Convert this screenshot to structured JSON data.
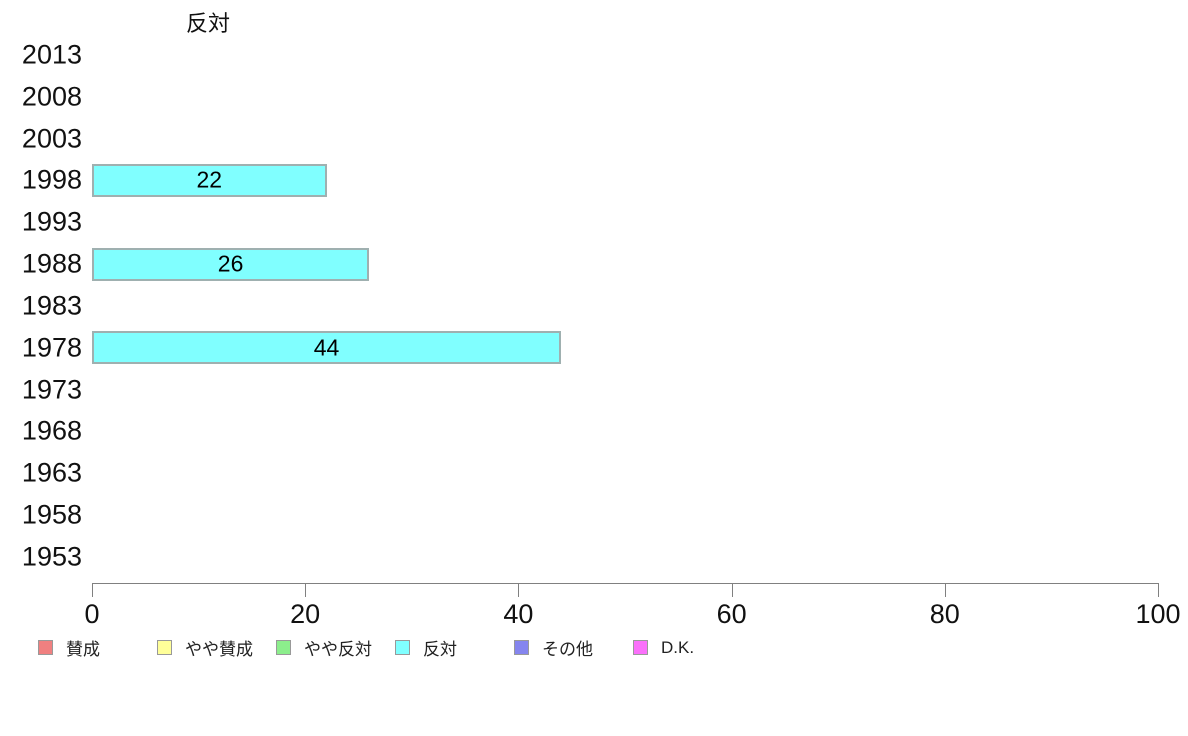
{
  "title": "反対",
  "chart_data": {
    "type": "bar",
    "orientation": "horizontal",
    "title": "反対",
    "categories": [
      "2013",
      "2008",
      "2003",
      "1998",
      "1993",
      "1988",
      "1983",
      "1978",
      "1973",
      "1968",
      "1963",
      "1958",
      "1953"
    ],
    "series": [
      {
        "name": "反対",
        "values": [
          null,
          null,
          null,
          22,
          null,
          26,
          null,
          44,
          null,
          null,
          null,
          null,
          null
        ],
        "color": "#80ffff",
        "border_color": "#9fb0b0"
      }
    ],
    "xlim": [
      0,
      100
    ],
    "x_ticks": [
      0,
      20,
      40,
      60,
      80,
      100
    ],
    "grid": false,
    "legend_position": "bottom",
    "legend": [
      {
        "label": "賛成",
        "color": "#f08080"
      },
      {
        "label": "やや賛成",
        "color": "#ffff99"
      },
      {
        "label": "やや反対",
        "color": "#8cee8c"
      },
      {
        "label": "反対",
        "color": "#80ffff"
      },
      {
        "label": "その他",
        "color": "#8585ee"
      },
      {
        "label": "D.K.",
        "color": "#fa70fa"
      }
    ]
  }
}
